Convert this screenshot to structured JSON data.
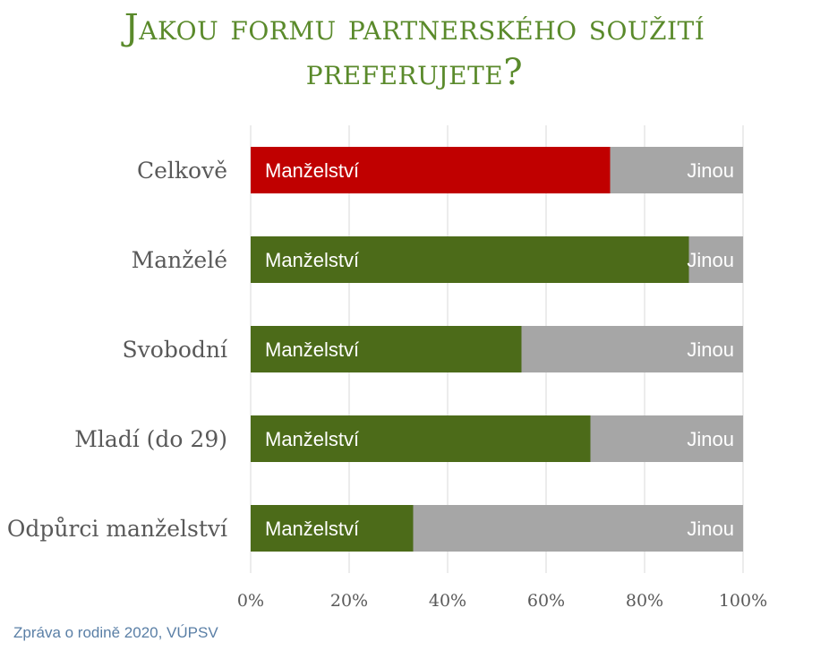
{
  "chart_data": {
    "type": "bar",
    "orientation": "horizontal",
    "stacked": true,
    "title_lines": [
      "Jakou formu partnerského soužití",
      "preferujete?"
    ],
    "categories": [
      "Celkově",
      "Manželé",
      "Svobodní",
      "Mladí (do 29)",
      "Odpůrci manželství"
    ],
    "series": [
      {
        "label": "Manželství",
        "values": [
          73,
          89,
          55,
          69,
          33
        ],
        "colors": [
          "#c00000",
          "#4c6b19",
          "#4c6b19",
          "#4c6b19",
          "#4c6b19"
        ]
      },
      {
        "label": "Jinou",
        "values": [
          27,
          11,
          45,
          31,
          67
        ],
        "color": "#a6a6a6"
      }
    ],
    "x_ticks": [
      "0%",
      "20%",
      "40%",
      "60%",
      "80%",
      "100%"
    ],
    "xlim": [
      0,
      100
    ],
    "grid": "vertical",
    "legend": "none"
  },
  "source": "Zpráva o rodině 2020, VÚPSV"
}
